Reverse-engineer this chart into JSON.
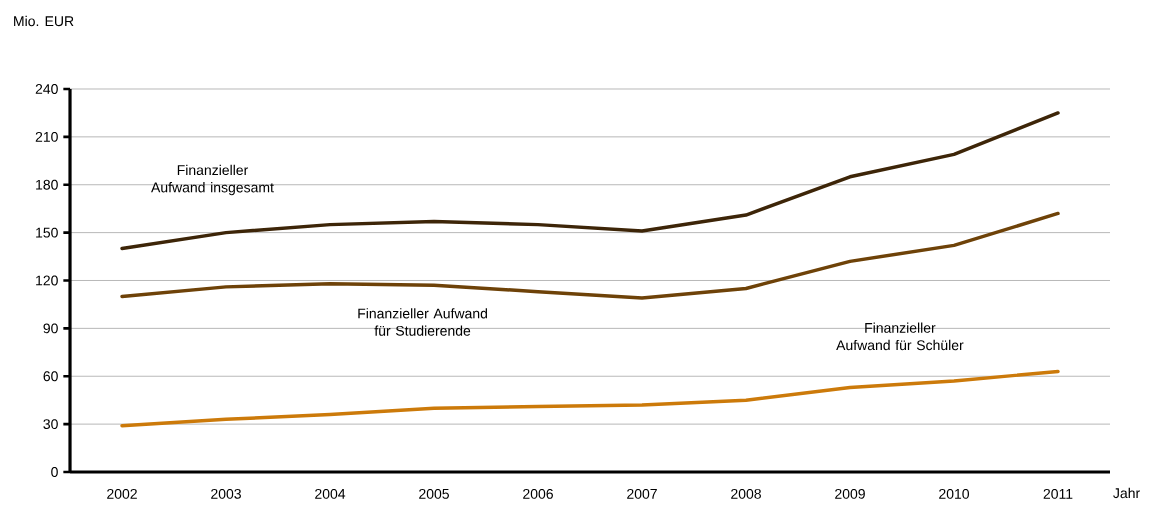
{
  "chart_data": {
    "type": "line",
    "ylabel": "Mio. EUR",
    "xlabel": "Jahr",
    "categories": [
      "2002",
      "2003",
      "2004",
      "2005",
      "2006",
      "2007",
      "2008",
      "2009",
      "2010",
      "2011"
    ],
    "series": [
      {
        "name": "Finanzieller Aufwand insgesamt",
        "color": "#3d2508",
        "values": [
          140,
          150,
          155,
          157,
          155,
          151,
          161,
          185,
          199,
          225
        ]
      },
      {
        "name": "Finanzieller Aufwand für Studierende",
        "color": "#6e4208",
        "values": [
          110,
          116,
          118,
          117,
          113,
          109,
          115,
          132,
          142,
          162
        ]
      },
      {
        "name": "Finanzieller Aufwand für Schüler",
        "color": "#cc7a0a",
        "values": [
          29,
          33,
          36,
          40,
          41,
          42,
          45,
          53,
          57,
          63
        ]
      }
    ],
    "ylim": [
      0,
      240
    ],
    "yticks": [
      0,
      30,
      60,
      90,
      120,
      150,
      180,
      210,
      240
    ],
    "grid": "y",
    "legend": false,
    "marker": "none",
    "line_style": "solid"
  }
}
